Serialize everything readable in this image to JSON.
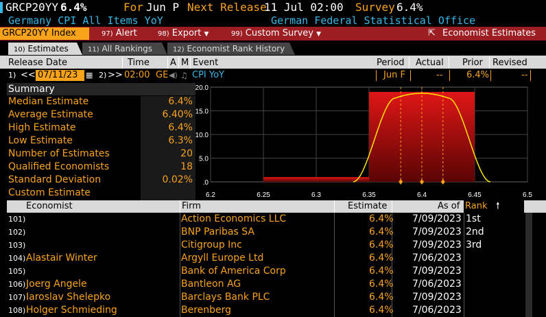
{
  "header": {
    "ticker": "GRCP20YY",
    "value": "6.4%",
    "for_label": "For",
    "for_value": "Jun P",
    "next_release_label": "Next Release",
    "next_release_value": "11 Jul 02:00",
    "survey_label": "Survey",
    "survey_value": "6.4%",
    "subtitle": "Germany CPI All Items YoY",
    "source": "German Federal Statistical Office"
  },
  "menu": {
    "index_label": "GRCP20YY Index",
    "alert_num": "97)",
    "alert_label": "Alert",
    "export_num": "98)",
    "export_label": "Export",
    "custom_num": "99)",
    "custom_label": "Custom Survey",
    "economist_label": "Economist Estimates"
  },
  "tabs": [
    {
      "num": "10)",
      "label": "Estimates"
    },
    {
      "num": "11)",
      "label": "All Rankings"
    },
    {
      "num": "12)",
      "label": "Economist Rank History"
    }
  ],
  "columns": {
    "release_date": "Release Date",
    "time": "Time",
    "a": "A",
    "m": "M",
    "event": "Event",
    "period": "Period",
    "actual": "Actual",
    "prior": "Prior",
    "revised": "Revised"
  },
  "release_row": {
    "prev_num": "1)",
    "prev_symbol": "<<",
    "date": "07/11/23",
    "next_num": "2)",
    "next_symbol": ">>",
    "time": "02:00",
    "country": "GE",
    "event": "CPI YoY",
    "period": "Jun F",
    "actual": "--",
    "prior": "6.4%",
    "revised": "--"
  },
  "summary": {
    "title": "Summary",
    "rows": [
      {
        "label": "Median Estimate",
        "value": "6.4%"
      },
      {
        "label": "Average Estimate",
        "value": "6.40%"
      },
      {
        "label": "High Estimate",
        "value": "6.4%"
      },
      {
        "label": "Low Estimate",
        "value": "6.3%"
      },
      {
        "label": "Number of Estimates",
        "value": "20"
      },
      {
        "label": "Qualified Economists",
        "value": "18"
      },
      {
        "label": "Standard Deviation",
        "value": "0.02%"
      },
      {
        "label": "Custom Estimate",
        "value": ""
      }
    ]
  },
  "chart_data": {
    "type": "bar",
    "x_ticks": [
      "6.2",
      "6.25",
      "6.3",
      "6.35",
      "6.4",
      "6.45",
      "6.5"
    ],
    "y_ticks": [
      "20.0",
      "15.0",
      "10.0",
      "5.0",
      ".0"
    ],
    "xlim": [
      6.2,
      6.5
    ],
    "ylim": [
      0,
      20
    ],
    "bars": [
      {
        "from": 6.25,
        "to": 6.35,
        "count": 1
      },
      {
        "from": 6.35,
        "to": 6.45,
        "count": 19
      }
    ],
    "markers": [
      6.38,
      6.4,
      6.42
    ],
    "colors": {
      "bar": "#c41414",
      "curve": "#ffe600",
      "marker": "#f9a31b"
    }
  },
  "table": {
    "headers": {
      "economist": "Economist",
      "firm": "Firm",
      "estimate": "Estimate",
      "as_of": "As of",
      "rank": "Rank"
    },
    "rows": [
      {
        "num": "101)",
        "economist": "",
        "firm": "Action Economics LLC",
        "estimate": "6.4%",
        "as_of": "7/09/2023",
        "rank": "1st"
      },
      {
        "num": "102)",
        "economist": "",
        "firm": "BNP Paribas SA",
        "estimate": "6.4%",
        "as_of": "7/09/2023",
        "rank": "2nd"
      },
      {
        "num": "103)",
        "economist": "",
        "firm": "Citigroup Inc",
        "estimate": "6.4%",
        "as_of": "7/09/2023",
        "rank": "3rd"
      },
      {
        "num": "104)",
        "economist": "Alastair Winter",
        "firm": "Argyll Europe Ltd",
        "estimate": "6.4%",
        "as_of": "7/06/2023",
        "rank": ""
      },
      {
        "num": "105)",
        "economist": "",
        "firm": "Bank of America Corp",
        "estimate": "6.4%",
        "as_of": "7/09/2023",
        "rank": ""
      },
      {
        "num": "106)",
        "economist": "Joerg Angele",
        "firm": "Bantleon AG",
        "estimate": "6.4%",
        "as_of": "7/06/2023",
        "rank": ""
      },
      {
        "num": "107)",
        "economist": "Iaroslav Shelepko",
        "firm": "Barclays Bank PLC",
        "estimate": "6.4%",
        "as_of": "7/09/2023",
        "rank": ""
      },
      {
        "num": "108)",
        "economist": "Holger Schmieding",
        "firm": "Berenberg",
        "estimate": "6.4%",
        "as_of": "7/06/2023",
        "rank": ""
      }
    ]
  }
}
